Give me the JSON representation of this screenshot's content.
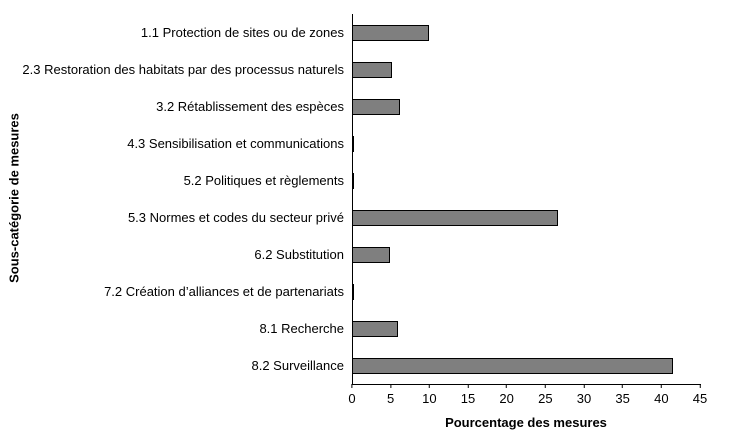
{
  "chart_data": {
    "type": "bar",
    "orientation": "horizontal",
    "title": "",
    "xlabel": "Pourcentage des mesures",
    "ylabel": "Sous-catégorie de mesures",
    "xlim": [
      0,
      45
    ],
    "xticks": [
      0,
      5,
      10,
      15,
      20,
      25,
      30,
      35,
      40,
      45
    ],
    "grid": false,
    "legend": false,
    "bar_color": "#7f7f7f",
    "bar_border_color": "#000000",
    "categories": [
      "1.1 Protection de sites ou de zones",
      "2.3 Restoration des habitats par des processus naturels",
      "3.2 Rétablissement des espèces",
      "4.3 Sensibilisation et communications",
      "5.2 Politiques et règlements",
      "5.3 Normes et codes du secteur privé",
      "6.2 Substitution",
      "7.2 Création d’alliances et de partenariats",
      "8.1 Recherche",
      "8.2 Surveillance"
    ],
    "values": [
      10,
      5.2,
      6.2,
      0.3,
      0.3,
      26.6,
      4.9,
      0.3,
      6,
      41.5
    ]
  }
}
